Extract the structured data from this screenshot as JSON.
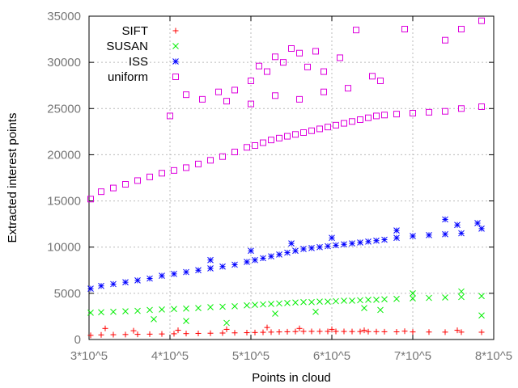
{
  "chart_data": {
    "type": "scatter",
    "title": "",
    "xlabel": "Points in cloud",
    "ylabel": "Extracted interest points",
    "xlim": [
      300000,
      800000
    ],
    "ylim": [
      0,
      35000
    ],
    "x_ticks": [
      {
        "value": 300000,
        "label": "3*10^5"
      },
      {
        "value": 400000,
        "label": "4*10^5"
      },
      {
        "value": 500000,
        "label": "5*10^5"
      },
      {
        "value": 600000,
        "label": "6*10^5"
      },
      {
        "value": 700000,
        "label": "7*10^5"
      },
      {
        "value": 800000,
        "label": "8*10^5"
      }
    ],
    "y_ticks": [
      {
        "value": 0,
        "label": "0"
      },
      {
        "value": 5000,
        "label": "5000"
      },
      {
        "value": 10000,
        "label": "10000"
      },
      {
        "value": 15000,
        "label": "15000"
      },
      {
        "value": 20000,
        "label": "20000"
      },
      {
        "value": 25000,
        "label": "25000"
      },
      {
        "value": 30000,
        "label": "30000"
      },
      {
        "value": 35000,
        "label": "35000"
      }
    ],
    "grid": true,
    "legend_position": "top-left",
    "series": [
      {
        "name": "SIFT",
        "color": "#ff0000",
        "marker": "plus",
        "x": [
          302000,
          315000,
          330000,
          345000,
          360000,
          375000,
          390000,
          405000,
          420000,
          435000,
          450000,
          465000,
          480000,
          495000,
          505000,
          515000,
          525000,
          535000,
          545000,
          555000,
          565000,
          575000,
          585000,
          595000,
          605000,
          615000,
          625000,
          635000,
          645000,
          655000,
          665000,
          680000,
          700000,
          720000,
          740000,
          760000,
          785000,
          320000,
          355000,
          410000,
          470000,
          520000,
          560000,
          600000,
          640000,
          690000,
          755000
        ],
        "y": [
          450,
          500,
          520,
          540,
          560,
          580,
          600,
          620,
          640,
          660,
          680,
          700,
          720,
          740,
          760,
          780,
          800,
          820,
          840,
          860,
          880,
          880,
          880,
          880,
          880,
          870,
          860,
          860,
          850,
          850,
          840,
          830,
          820,
          810,
          800,
          800,
          790,
          1200,
          950,
          1000,
          1100,
          1300,
          1200,
          1100,
          1000,
          900,
          1000
        ]
      },
      {
        "name": "SUSAN",
        "color": "#00ee00",
        "marker": "cross",
        "x": [
          302000,
          315000,
          330000,
          345000,
          360000,
          375000,
          390000,
          405000,
          420000,
          435000,
          450000,
          465000,
          480000,
          495000,
          505000,
          515000,
          525000,
          535000,
          545000,
          555000,
          565000,
          575000,
          585000,
          595000,
          605000,
          615000,
          625000,
          635000,
          645000,
          655000,
          665000,
          680000,
          700000,
          720000,
          740000,
          760000,
          785000,
          380000,
          420000,
          470000,
          530000,
          580000,
          640000,
          660000,
          700000,
          760000,
          785000
        ],
        "y": [
          2900,
          2950,
          3000,
          3050,
          3100,
          3200,
          3250,
          3300,
          3350,
          3400,
          3500,
          3550,
          3600,
          3700,
          3750,
          3800,
          3850,
          3900,
          3950,
          4000,
          4050,
          4050,
          4100,
          4100,
          4150,
          4200,
          4200,
          4250,
          4300,
          4300,
          4350,
          4400,
          4450,
          4500,
          4550,
          4600,
          4700,
          2200,
          2000,
          1800,
          2800,
          3000,
          3400,
          3200,
          5000,
          5200,
          2600
        ]
      },
      {
        "name": "ISS",
        "color": "#0000ff",
        "marker": "star",
        "x": [
          302000,
          315000,
          330000,
          345000,
          360000,
          375000,
          390000,
          405000,
          420000,
          435000,
          450000,
          465000,
          480000,
          495000,
          505000,
          515000,
          525000,
          535000,
          545000,
          555000,
          565000,
          575000,
          585000,
          595000,
          605000,
          615000,
          625000,
          635000,
          645000,
          655000,
          665000,
          680000,
          700000,
          720000,
          740000,
          760000,
          785000,
          450000,
          500000,
          550000,
          600000,
          680000,
          740000,
          755000,
          780000
        ],
        "y": [
          5500,
          5800,
          6000,
          6200,
          6400,
          6600,
          6900,
          7100,
          7300,
          7500,
          7700,
          7900,
          8100,
          8400,
          8600,
          8800,
          9000,
          9200,
          9400,
          9600,
          9800,
          9900,
          10000,
          10100,
          10200,
          10300,
          10400,
          10500,
          10600,
          10700,
          10800,
          11000,
          11200,
          11300,
          11400,
          11500,
          12000,
          8600,
          9600,
          10400,
          11000,
          11800,
          13000,
          12400,
          12600
        ]
      },
      {
        "name": "uniform",
        "color": "#dd00dd",
        "marker": "square",
        "x": [
          302000,
          315000,
          330000,
          345000,
          360000,
          375000,
          390000,
          405000,
          420000,
          435000,
          450000,
          465000,
          480000,
          495000,
          505000,
          515000,
          525000,
          535000,
          545000,
          555000,
          565000,
          575000,
          585000,
          595000,
          605000,
          615000,
          625000,
          635000,
          645000,
          655000,
          665000,
          680000,
          700000,
          720000,
          740000,
          760000,
          785000,
          400000,
          420000,
          440000,
          460000,
          480000,
          500000,
          510000,
          520000,
          530000,
          540000,
          550000,
          560000,
          570000,
          580000,
          590000,
          610000,
          630000,
          650000,
          690000,
          740000,
          760000,
          785000,
          470000,
          500000,
          530000,
          560000,
          590000,
          620000,
          660000
        ],
        "y": [
          15200,
          16000,
          16400,
          16800,
          17200,
          17600,
          18000,
          18300,
          18600,
          19000,
          19400,
          19800,
          20300,
          20800,
          21000,
          21300,
          21600,
          21800,
          22000,
          22200,
          22400,
          22600,
          22800,
          23000,
          23200,
          23400,
          23600,
          23800,
          24000,
          24200,
          24300,
          24400,
          24500,
          24600,
          24700,
          25000,
          25200,
          24200,
          26500,
          26000,
          26800,
          27000,
          28000,
          29600,
          29000,
          30600,
          30000,
          31500,
          31000,
          29500,
          31200,
          29000,
          30500,
          33500,
          28500,
          33600,
          32400,
          33600,
          34500,
          25800,
          25500,
          26400,
          26000,
          26800,
          27200,
          28000
        ]
      }
    ]
  }
}
